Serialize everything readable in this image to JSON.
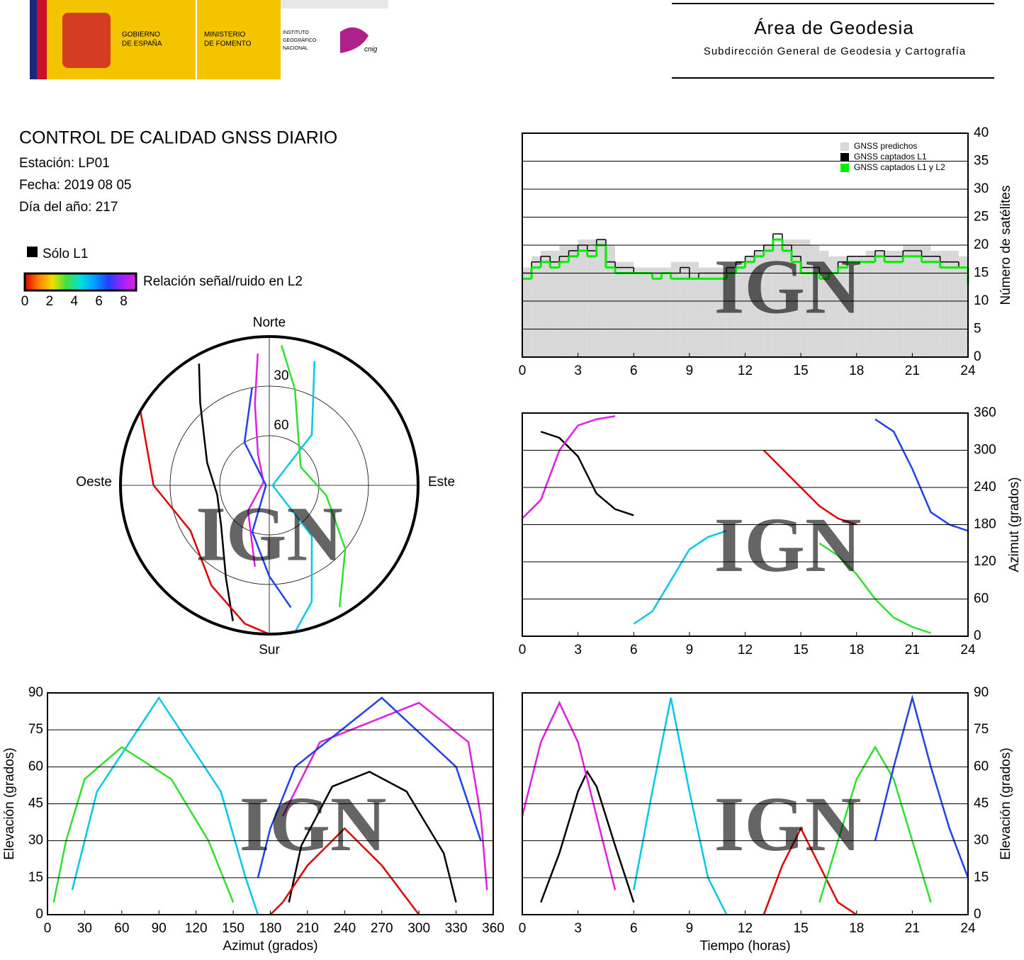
{
  "header": {
    "gov": [
      "GOBIERNO",
      "DE ESPAÑA"
    ],
    "ministry": [
      "MINISTERIO",
      "DE FOMENTO"
    ],
    "ign": [
      "INSTITUTO",
      "GEOGRÁFICO",
      "NACIONAL"
    ],
    "cnig": "cnig",
    "title": "Área de Geodesia",
    "subtitle": "Subdirección General de Geodesia y Cartografía"
  },
  "report": {
    "title": "CONTROL DE CALIDAD GNSS DIARIO",
    "station": "Estación: LP01",
    "date": "Fecha: 2019 08 05",
    "doy": "Día del año: 217"
  },
  "legend": {
    "l1_only": "Sólo L1",
    "l1_color": "#000000",
    "snr_label": "Relación señal/ruido en L2",
    "snr_lim": [
      0,
      9
    ],
    "snr_ticks": [
      0,
      2,
      4,
      6,
      8
    ],
    "snr_colors": [
      "#e00000",
      "#ff8000",
      "#f0e000",
      "#40e040",
      "#00e0e0",
      "#00a0ff",
      "#2040ff",
      "#a020ff",
      "#e020e0"
    ]
  },
  "watermark": "IGN",
  "chart_data": [
    {
      "type": "step",
      "xlim": [
        0,
        24
      ],
      "xticks": [
        0,
        3,
        6,
        9,
        12,
        15,
        18,
        21,
        24
      ],
      "ylim": [
        0,
        40
      ],
      "yticks": [
        0,
        5,
        10,
        15,
        20,
        25,
        30,
        35,
        40
      ],
      "grid": true,
      "ylabel": "Número de satélites",
      "legend": "top-right",
      "x": [
        0,
        0.5,
        1,
        1.5,
        2,
        2.5,
        3,
        3.5,
        4,
        4.5,
        5,
        5.5,
        6,
        6.5,
        7,
        7.5,
        8,
        8.5,
        9,
        9.5,
        10,
        10.5,
        11,
        11.5,
        12,
        12.5,
        13,
        13.5,
        14,
        14.5,
        15,
        15.5,
        16,
        16.5,
        17,
        17.5,
        18,
        18.5,
        19,
        19.5,
        20,
        20.5,
        21,
        21.5,
        22,
        22.5,
        23,
        23.5,
        24
      ],
      "series": [
        {
          "name": "GNSS predichos",
          "color": "#d8d8d8",
          "values": [
            16,
            18,
            19,
            19,
            20,
            20,
            21,
            21,
            21,
            20,
            17,
            17,
            16,
            16,
            16,
            16,
            17,
            17,
            17,
            16,
            16,
            16,
            16,
            17,
            18,
            19,
            20,
            20,
            21,
            21,
            21,
            20,
            19,
            18,
            18,
            18,
            18,
            19,
            19,
            19,
            19,
            20,
            20,
            20,
            19,
            19,
            19,
            18,
            16
          ]
        },
        {
          "name": "GNSS captados L1",
          "color": "#000000",
          "values": [
            15,
            17,
            18,
            17,
            18,
            19,
            20,
            19,
            21,
            17,
            16,
            16,
            15,
            15,
            15,
            15,
            15,
            16,
            14,
            15,
            15,
            15,
            16,
            17,
            18,
            19,
            20,
            22,
            20,
            18,
            16,
            16,
            15,
            15,
            17,
            18,
            18,
            18,
            19,
            18,
            18,
            19,
            19,
            18,
            18,
            17,
            17,
            16,
            15
          ]
        },
        {
          "name": "GNSS captados L1 y L2",
          "color": "#00ee00",
          "values": [
            14,
            16,
            17,
            16,
            17,
            18,
            19,
            18,
            20,
            16,
            15,
            15,
            15,
            15,
            14,
            15,
            14,
            14,
            14,
            14,
            14,
            14,
            15,
            16,
            17,
            18,
            19,
            21,
            19,
            17,
            15,
            15,
            14,
            15,
            16,
            17,
            17,
            17,
            18,
            17,
            17,
            18,
            18,
            17,
            17,
            16,
            16,
            16,
            13
          ]
        }
      ]
    },
    {
      "type": "track",
      "xlim": [
        0,
        24
      ],
      "xticks": [
        0,
        3,
        6,
        9,
        12,
        15,
        18,
        21,
        24
      ],
      "ylim": [
        0,
        360
      ],
      "yticks": [
        0,
        60,
        120,
        180,
        240,
        300,
        360
      ],
      "grid": true,
      "ylabel": "Azimut (grados)",
      "series": [
        {
          "color": "#000000",
          "x": [
            1,
            2,
            3,
            3.5,
            4,
            5,
            6
          ],
          "values": [
            330,
            320,
            290,
            260,
            230,
            205,
            195
          ]
        },
        {
          "color": "#e020e0",
          "x": [
            0,
            1,
            2,
            3,
            4,
            5
          ],
          "values": [
            190,
            220,
            300,
            340,
            350,
            355
          ]
        },
        {
          "color": "#00c8e8",
          "x": [
            6,
            7,
            8,
            9,
            10,
            11
          ],
          "values": [
            20,
            40,
            90,
            140,
            160,
            170
          ]
        },
        {
          "color": "#e00000",
          "x": [
            13,
            14,
            15,
            16,
            17,
            18
          ],
          "values": [
            300,
            270,
            240,
            210,
            190,
            180
          ]
        },
        {
          "color": "#30e030",
          "x": [
            16,
            17,
            18,
            19,
            20,
            21,
            22
          ],
          "values": [
            150,
            130,
            100,
            60,
            30,
            15,
            5
          ]
        },
        {
          "color": "#2040f0",
          "x": [
            19,
            20,
            21,
            22,
            23,
            24
          ],
          "values": [
            350,
            330,
            270,
            200,
            180,
            170
          ]
        }
      ]
    },
    {
      "type": "polar",
      "elevation_lim": [
        0,
        90
      ],
      "rings": [
        30,
        60
      ],
      "north": "Norte",
      "south": "Sur",
      "east": "Este",
      "west": "Oeste",
      "series": [
        {
          "color": "#000000",
          "azimuth": [
            330,
            320,
            290,
            260,
            230,
            205,
            195
          ],
          "elevation": [
            5,
            25,
            50,
            58,
            52,
            28,
            5
          ]
        },
        {
          "color": "#e020e0",
          "azimuth": [
            190,
            220,
            300,
            340,
            350,
            355
          ],
          "elevation": [
            40,
            70,
            86,
            70,
            40,
            10
          ]
        },
        {
          "color": "#00c8e8",
          "azimuth": [
            20,
            40,
            90,
            140,
            160,
            170
          ],
          "elevation": [
            10,
            50,
            88,
            50,
            15,
            0
          ]
        },
        {
          "color": "#e00000",
          "azimuth": [
            300,
            270,
            240,
            210,
            190,
            180
          ],
          "elevation": [
            0,
            20,
            35,
            20,
            5,
            0
          ]
        },
        {
          "color": "#30e030",
          "azimuth": [
            150,
            130,
            100,
            60,
            30,
            15,
            5
          ],
          "elevation": [
            5,
            30,
            55,
            68,
            55,
            30,
            5
          ]
        },
        {
          "color": "#2040f0",
          "azimuth": [
            350,
            330,
            270,
            200,
            180,
            170
          ],
          "elevation": [
            30,
            60,
            88,
            60,
            35,
            15
          ]
        }
      ]
    },
    {
      "type": "track",
      "xlim": [
        0,
        360
      ],
      "xticks": [
        0,
        30,
        60,
        90,
        120,
        150,
        180,
        210,
        240,
        270,
        300,
        330,
        360
      ],
      "ylim": [
        0,
        90
      ],
      "yticks": [
        0,
        15,
        30,
        45,
        60,
        75,
        90
      ],
      "grid": true,
      "xlabel": "Azimut (grados)",
      "ylabel": "Elevación (grados)",
      "series": [
        {
          "color": "#000000",
          "x": [
            330,
            320,
            290,
            260,
            230,
            205,
            195
          ],
          "values": [
            5,
            25,
            50,
            58,
            52,
            28,
            5
          ]
        },
        {
          "color": "#e020e0",
          "x": [
            190,
            220,
            300,
            340,
            350,
            355
          ],
          "values": [
            40,
            70,
            86,
            70,
            40,
            10
          ]
        },
        {
          "color": "#00c8e8",
          "x": [
            20,
            40,
            90,
            140,
            160,
            170
          ],
          "values": [
            10,
            50,
            88,
            50,
            15,
            0
          ]
        },
        {
          "color": "#e00000",
          "x": [
            300,
            270,
            240,
            210,
            190,
            180
          ],
          "values": [
            0,
            20,
            35,
            20,
            5,
            0
          ]
        },
        {
          "color": "#30e030",
          "x": [
            150,
            130,
            100,
            60,
            30,
            15,
            5
          ],
          "values": [
            5,
            30,
            55,
            68,
            55,
            30,
            5
          ]
        },
        {
          "color": "#2040f0",
          "x": [
            350,
            330,
            270,
            200,
            180,
            170
          ],
          "values": [
            30,
            60,
            88,
            60,
            35,
            15
          ]
        }
      ]
    },
    {
      "type": "track",
      "xlim": [
        0,
        24
      ],
      "xticks": [
        0,
        3,
        6,
        9,
        12,
        15,
        18,
        21,
        24
      ],
      "ylim": [
        0,
        90
      ],
      "yticks": [
        0,
        15,
        30,
        45,
        60,
        75,
        90
      ],
      "grid": true,
      "xlabel": "Tiempo (horas)",
      "ylabel": "Elevación (grados)",
      "series": [
        {
          "color": "#000000",
          "x": [
            1,
            2,
            3,
            3.5,
            4,
            5,
            6
          ],
          "values": [
            5,
            25,
            50,
            58,
            52,
            28,
            5
          ]
        },
        {
          "color": "#e020e0",
          "x": [
            0,
            1,
            2,
            3,
            4,
            5
          ],
          "values": [
            40,
            70,
            86,
            70,
            40,
            10
          ]
        },
        {
          "color": "#00c8e8",
          "x": [
            6,
            7,
            8,
            9,
            10,
            11
          ],
          "values": [
            10,
            50,
            88,
            50,
            15,
            0
          ]
        },
        {
          "color": "#e00000",
          "x": [
            13,
            14,
            15,
            16,
            17,
            18
          ],
          "values": [
            0,
            20,
            35,
            20,
            5,
            0
          ]
        },
        {
          "color": "#30e030",
          "x": [
            16,
            17,
            18,
            19,
            20,
            21,
            22
          ],
          "values": [
            5,
            30,
            55,
            68,
            55,
            30,
            5
          ]
        },
        {
          "color": "#2040f0",
          "x": [
            19,
            20,
            21,
            22,
            23,
            24
          ],
          "values": [
            30,
            60,
            88,
            60,
            35,
            15
          ]
        }
      ]
    }
  ]
}
